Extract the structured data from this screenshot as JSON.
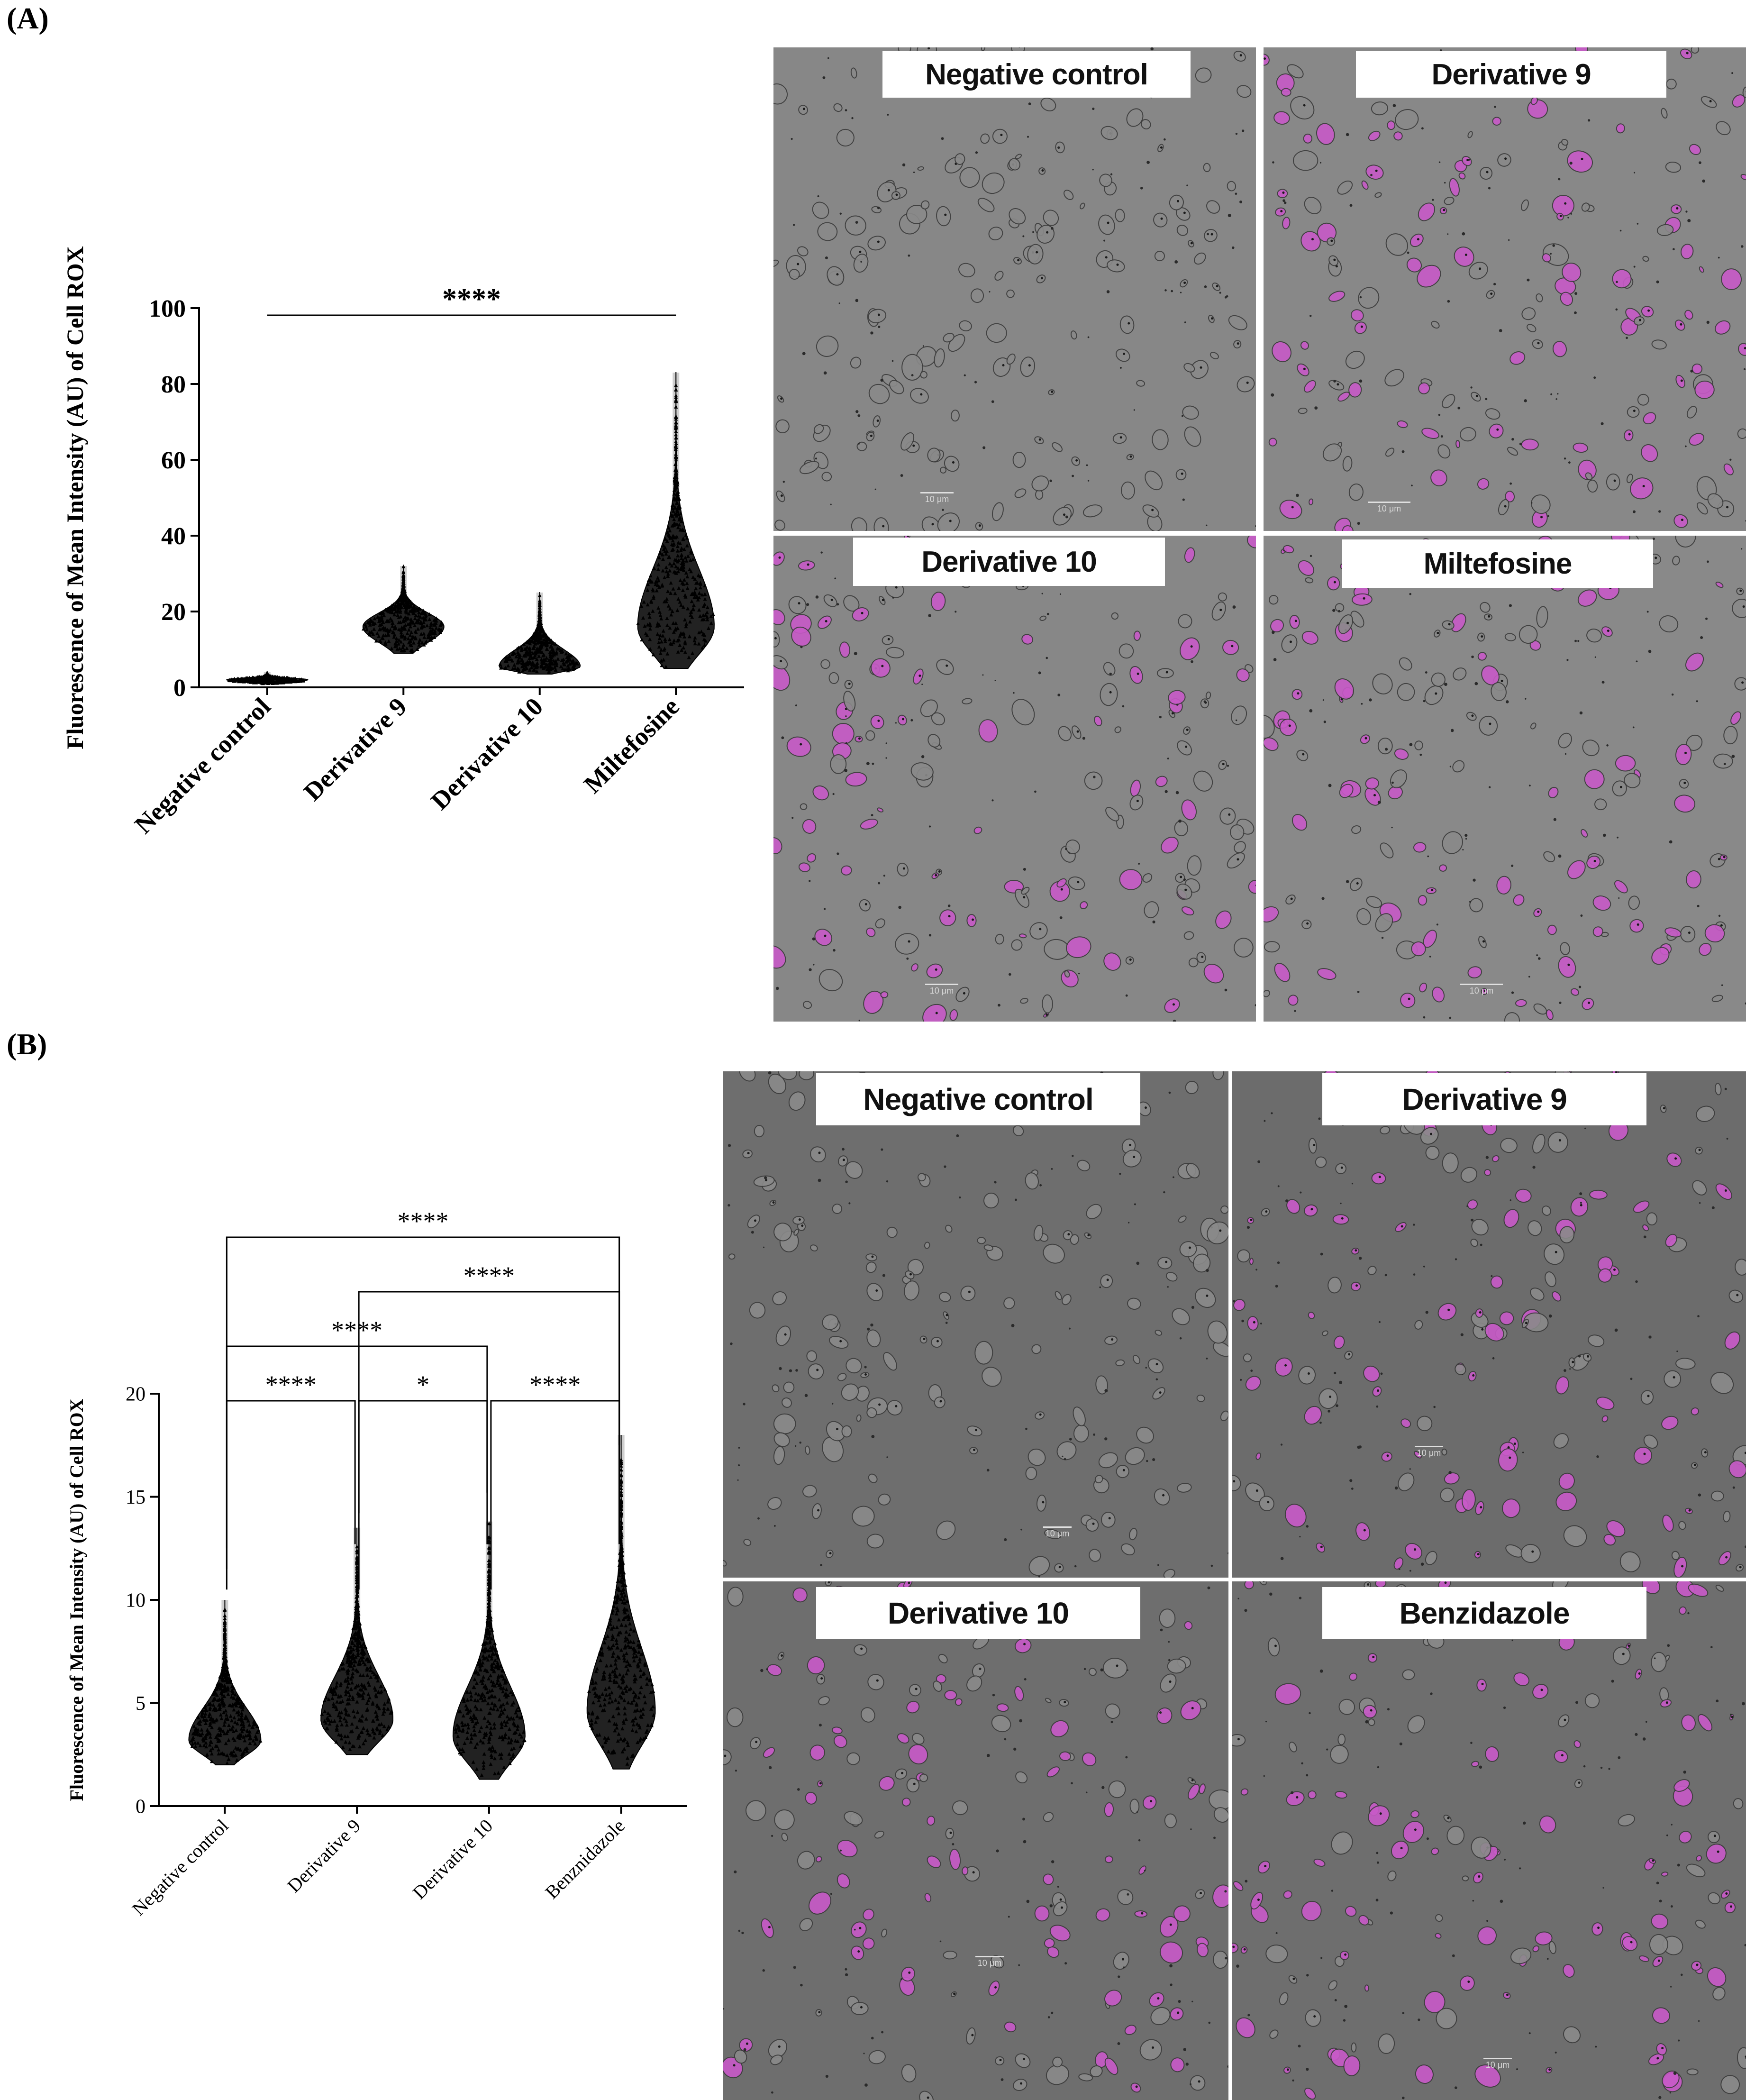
{
  "panels": [
    {
      "label": "(A)",
      "chart_data": {
        "type": "scatter",
        "plot_style": "violin-dot plot",
        "ylabel": "Fluorescence of Mean Intensity (AU) of Cell ROX",
        "xlabel": "",
        "ylim": [
          0,
          100
        ],
        "yticks": [
          0,
          20,
          40,
          60,
          80,
          100
        ],
        "categories": [
          "Negative control",
          "Derivative 9",
          "Derivative 10",
          "Miltefosine"
        ],
        "distributions": [
          {
            "name": "Negative control",
            "min": 1,
            "median": 2,
            "mode": 2,
            "max": 4,
            "spread": 0.9
          },
          {
            "name": "Derivative 9",
            "min": 9,
            "median": 17,
            "mode": 16,
            "max": 32,
            "spread": 0.9
          },
          {
            "name": "Derivative 10",
            "min": 3.5,
            "median": 6,
            "mode": 5.5,
            "max": 25,
            "spread": 0.9
          },
          {
            "name": "Miltefosine",
            "min": 5,
            "median": 19,
            "mode": 16,
            "max": 83,
            "spread": 0.85
          }
        ],
        "significance": [
          {
            "from": "Negative control",
            "to": "Miltefosine",
            "label": "****",
            "style": "line"
          }
        ],
        "grid": false
      },
      "images": [
        {
          "label": "Negative control",
          "scale": "10 μm",
          "magenta": 0.0
        },
        {
          "label": "Derivative 9",
          "scale": "10 μm",
          "magenta": 0.55
        },
        {
          "label": "Derivative 10",
          "scale": "10 μm",
          "magenta": 0.45
        },
        {
          "label": "Miltefosine",
          "scale": "10 μm",
          "magenta": 0.55
        }
      ]
    },
    {
      "label": "(B)",
      "chart_data": {
        "type": "scatter",
        "plot_style": "violin-dot plot",
        "ylabel": "Fluorescence of Mean Intensity (AU) of Cell ROX",
        "xlabel": "",
        "ylim": [
          0,
          20
        ],
        "yticks": [
          0,
          5,
          10,
          15,
          20
        ],
        "categories": [
          "Negative control",
          "Derivative 9",
          "Derivative 10",
          "Benznidazole"
        ],
        "distributions": [
          {
            "name": "Negative control",
            "min": 2,
            "median": 3.4,
            "mode": 3.2,
            "max": 10,
            "spread": 0.95
          },
          {
            "name": "Derivative 9",
            "min": 2.5,
            "median": 4.6,
            "mode": 4.2,
            "max": 13.5,
            "spread": 0.95
          },
          {
            "name": "Derivative 10",
            "min": 1.3,
            "median": 3.8,
            "mode": 3.4,
            "max": 13.8,
            "spread": 0.95
          },
          {
            "name": "Benznidazole",
            "min": 1.8,
            "median": 5,
            "mode": 4.6,
            "max": 18,
            "spread": 0.9
          }
        ],
        "significance": [
          {
            "from": "Negative control",
            "to": "Derivative 9",
            "label": "****",
            "level": 0
          },
          {
            "from": "Derivative 9",
            "to": "Derivative 10",
            "label": "*",
            "level": 0
          },
          {
            "from": "Derivative 10",
            "to": "Benznidazole",
            "label": "****",
            "level": 0
          },
          {
            "from": "Negative control",
            "to": "Derivative 10",
            "label": "****",
            "level": 1
          },
          {
            "from": "Derivative 9",
            "to": "Benznidazole",
            "label": "****",
            "level": 2
          },
          {
            "from": "Negative control",
            "to": "Benznidazole",
            "label": "****",
            "level": 3
          }
        ],
        "grid": false
      },
      "images": [
        {
          "label": "Negative control",
          "scale": "10 μm",
          "magenta": 0.0
        },
        {
          "label": "Derivative 9",
          "scale": "10 μm",
          "magenta": 0.5
        },
        {
          "label": "Derivative 10",
          "scale": "10 μm",
          "magenta": 0.5
        },
        {
          "label": "Benzidazole",
          "scale": "10 μm",
          "magenta": 0.6
        }
      ]
    }
  ]
}
